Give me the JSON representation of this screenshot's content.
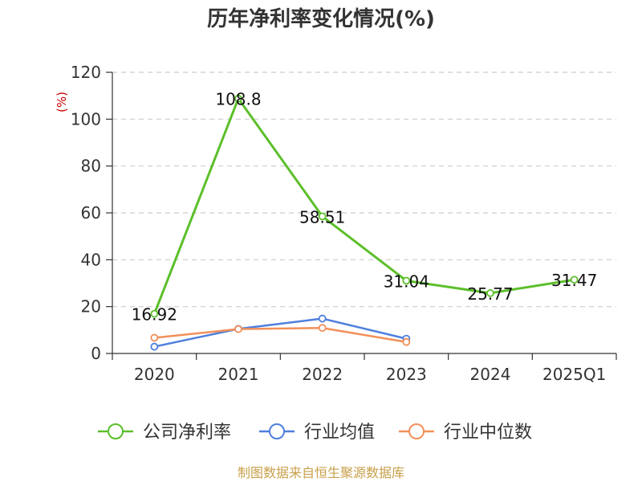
{
  "chart_data": {
    "type": "line",
    "title": "历年净利率变化情况(%)",
    "y_unit": "(%)",
    "categories": [
      "2020",
      "2021",
      "2022",
      "2023",
      "2024",
      "2025Q1"
    ],
    "ylim": [
      0,
      120
    ],
    "yticks": [
      0,
      20,
      40,
      60,
      80,
      100,
      120
    ],
    "grid": true,
    "legend_position": "bottom",
    "series": [
      {
        "name": "公司净利率",
        "color": "#5cbf2a",
        "values": [
          16.92,
          108.8,
          58.51,
          31.04,
          25.77,
          31.47
        ],
        "labels": [
          "16.92",
          "108.8",
          "58.51",
          "31.04",
          "25.77",
          "31.47"
        ]
      },
      {
        "name": "行业均值",
        "color": "#4f7fdd",
        "values": [
          2.9,
          10.5,
          14.9,
          6.3,
          null,
          null
        ]
      },
      {
        "name": "行业中位数",
        "color": "#f2905a",
        "values": [
          6.7,
          10.4,
          10.9,
          4.9,
          null,
          null
        ]
      }
    ]
  },
  "source_text": "制图数据来自恒生聚源数据库"
}
